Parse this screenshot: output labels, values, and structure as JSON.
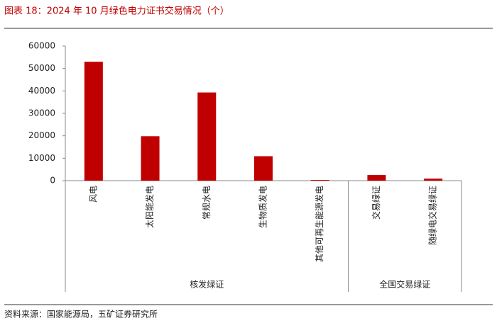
{
  "chart_data": {
    "type": "bar",
    "title": "图表 18：2024 年 10 月绿色电力证书交易情况（个）",
    "source": "资料来源：国家能源局，五矿证券研究所",
    "color": "#c00000",
    "groups": [
      {
        "name": "核发绿证",
        "categories": [
          "风电",
          "太阳能发电",
          "常规水电",
          "生物质发电",
          "其他可再生能源发电"
        ],
        "values": [
          53000,
          19800,
          39300,
          10900,
          300
        ]
      },
      {
        "name": "全国交易绿证",
        "categories": [
          "交易绿证",
          "随绿电交易绿证"
        ],
        "values": [
          2500,
          900
        ]
      }
    ],
    "ylim": [
      0,
      60000
    ],
    "yticks": [
      0,
      10000,
      20000,
      30000,
      40000,
      50000,
      60000
    ],
    "grid": false
  }
}
